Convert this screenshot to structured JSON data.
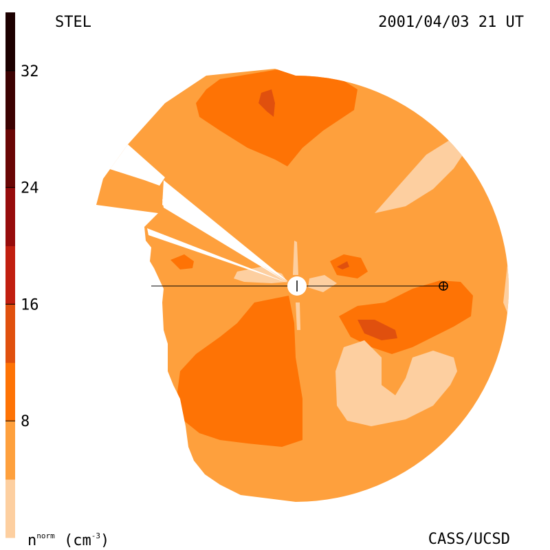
{
  "header": {
    "source": "STEL",
    "timestamp": "2001/04/03 21 UT"
  },
  "footer": {
    "credit": "CASS/UCSD",
    "unit_main": "n",
    "unit_sup": "norm",
    "unit_paren": "(cm",
    "unit_exp": "-3",
    "unit_close": ")"
  },
  "colorbar": {
    "ticks": [
      "8",
      "16",
      "24",
      "32"
    ],
    "levels": [
      {
        "from": 0,
        "to": 4,
        "color": "#fdcfa0"
      },
      {
        "from": 4,
        "to": 8,
        "color": "#fea03d"
      },
      {
        "from": 8,
        "to": 12,
        "color": "#fe7305"
      },
      {
        "from": 12,
        "to": 16,
        "color": "#e0500e"
      },
      {
        "from": 16,
        "to": 20,
        "color": "#c11f10"
      },
      {
        "from": 20,
        "to": 24,
        "color": "#970c0c"
      },
      {
        "from": 24,
        "to": 28,
        "color": "#6a0605"
      },
      {
        "from": 28,
        "to": 32,
        "color": "#3c0202"
      },
      {
        "from": 32,
        "to": 36,
        "color": "#1c0000"
      }
    ]
  },
  "chart_data": {
    "type": "heatmap",
    "view": "polar ecliptic density map",
    "scale_range": [
      0,
      36
    ],
    "background_level": "4-8",
    "regions": [
      {
        "level": "8-12",
        "location": "north (top)"
      },
      {
        "level": "12-16",
        "location": "north core"
      },
      {
        "level": "8-12",
        "location": "southwest"
      },
      {
        "level": "8-12",
        "location": "east near Earth"
      },
      {
        "level": "12-16",
        "location": "east core"
      },
      {
        "level": "0-4",
        "location": "northeast"
      },
      {
        "level": "0-4",
        "location": "southeast"
      }
    ],
    "markers": [
      "Sun",
      "Earth"
    ]
  }
}
